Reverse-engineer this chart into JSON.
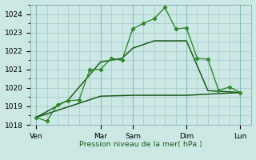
{
  "xlabel": "Pression niveau de la mer( hPa )",
  "ylim": [
    1018,
    1024.5
  ],
  "yticks": [
    1018,
    1019,
    1020,
    1021,
    1022,
    1023,
    1024
  ],
  "bg_color": "#cce8e4",
  "grid_color": "#aacccc",
  "line_color_dark": "#1a5c1a",
  "line_color_bright": "#2e8b2e",
  "xtick_labels": [
    "Ven",
    "Mar",
    "Sam",
    "Dim",
    "Lun"
  ],
  "xtick_positions": [
    0,
    6,
    9,
    14,
    19
  ],
  "vline_positions": [
    0,
    6,
    9,
    14,
    19
  ],
  "xlim": [
    -0.5,
    20
  ],
  "num_x_minor": 20,
  "line1_detailed": {
    "x": [
      0,
      1,
      2,
      3,
      4,
      5,
      6,
      7,
      8,
      9,
      10,
      11,
      12,
      13,
      14,
      15,
      16,
      17,
      18,
      19
    ],
    "y": [
      1018.4,
      1018.2,
      1019.1,
      1019.3,
      1019.35,
      1021.0,
      1021.0,
      1021.6,
      1021.5,
      1023.2,
      1023.5,
      1023.75,
      1024.35,
      1023.2,
      1023.25,
      1021.6,
      1021.55,
      1019.85,
      1020.05,
      1019.75
    ]
  },
  "line2_medium": {
    "x": [
      0,
      3,
      6,
      8,
      9,
      11,
      14,
      16,
      19
    ],
    "y": [
      1018.4,
      1019.35,
      1021.4,
      1021.6,
      1022.15,
      1022.55,
      1022.55,
      1019.85,
      1019.75
    ]
  },
  "line3_smooth": {
    "x": [
      0,
      6,
      9,
      14,
      19
    ],
    "y": [
      1018.4,
      1019.55,
      1019.6,
      1019.6,
      1019.75
    ]
  }
}
